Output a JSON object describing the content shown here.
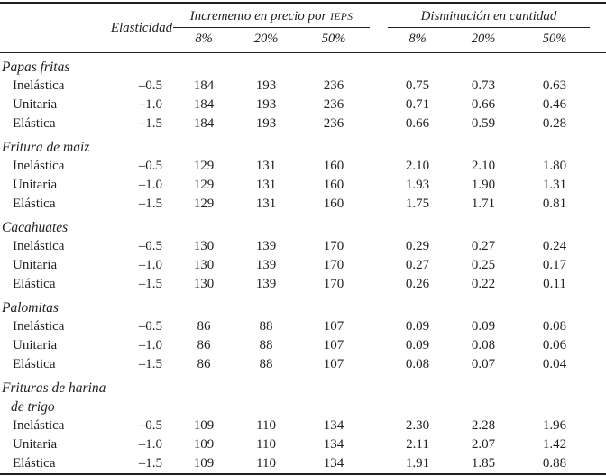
{
  "page": {
    "background": "#ffffff",
    "text_color": "#1f1f1f"
  },
  "table": {
    "header": {
      "elasticity_label": "Elasticidad",
      "groups": [
        {
          "title": "Incremento en precio por ",
          "title_smallcaps": "IEPS",
          "subcols": [
            "8%",
            "20%",
            "50%"
          ]
        },
        {
          "title": "Disminución en cantidad",
          "title_smallcaps": "",
          "subcols": [
            "8%",
            "20%",
            "50%"
          ]
        }
      ]
    },
    "sections": [
      {
        "name": "Papas fritas",
        "name2": "",
        "rows": [
          {
            "label": "Inelástica",
            "elasticity": "–0.5",
            "values": [
              "184",
              "193",
              "236",
              "0.75",
              "0.73",
              "0.63"
            ]
          },
          {
            "label": "Unitaria",
            "elasticity": "–1.0",
            "values": [
              "184",
              "193",
              "236",
              "0.71",
              "0.66",
              "0.46"
            ]
          },
          {
            "label": "Elástica",
            "elasticity": "–1.5",
            "values": [
              "184",
              "193",
              "236",
              "0.66",
              "0.59",
              "0.28"
            ]
          }
        ]
      },
      {
        "name": "Fritura de maíz",
        "name2": "",
        "rows": [
          {
            "label": "Inelástica",
            "elasticity": "–0.5",
            "values": [
              "129",
              "131",
              "160",
              "2.10",
              "2.10",
              "1.80"
            ]
          },
          {
            "label": "Unitaria",
            "elasticity": "–1.0",
            "values": [
              "129",
              "131",
              "160",
              "1.93",
              "1.90",
              "1.31"
            ]
          },
          {
            "label": "Elástica",
            "elasticity": "–1.5",
            "values": [
              "129",
              "131",
              "160",
              "1.75",
              "1.71",
              "0.81"
            ]
          }
        ]
      },
      {
        "name": "Cacahuates",
        "name2": "",
        "rows": [
          {
            "label": "Inelástica",
            "elasticity": "–0.5",
            "values": [
              "130",
              "139",
              "170",
              "0.29",
              "0.27",
              "0.24"
            ]
          },
          {
            "label": "Unitaria",
            "elasticity": "–1.0",
            "values": [
              "130",
              "139",
              "170",
              "0.27",
              "0.25",
              "0.17"
            ]
          },
          {
            "label": "Elástica",
            "elasticity": "–1.5",
            "values": [
              "130",
              "139",
              "170",
              "0.26",
              "0.22",
              "0.11"
            ]
          }
        ]
      },
      {
        "name": "Palomitas",
        "name2": "",
        "rows": [
          {
            "label": "Inelástica",
            "elasticity": "–0.5",
            "values": [
              "86",
              "88",
              "107",
              "0.09",
              "0.09",
              "0.08"
            ]
          },
          {
            "label": "Unitaria",
            "elasticity": "–1.0",
            "values": [
              "86",
              "88",
              "107",
              "0.09",
              "0.08",
              "0.06"
            ]
          },
          {
            "label": "Elástica",
            "elasticity": "–1.5",
            "values": [
              "86",
              "88",
              "107",
              "0.08",
              "0.07",
              "0.04"
            ]
          }
        ]
      },
      {
        "name": "Frituras de harina",
        "name2": "de trigo",
        "rows": [
          {
            "label": "Inelástica",
            "elasticity": "–0.5",
            "values": [
              "109",
              "110",
              "134",
              "2.30",
              "2.28",
              "1.96"
            ]
          },
          {
            "label": "Unitaria",
            "elasticity": "–1.0",
            "values": [
              "109",
              "110",
              "134",
              "2.11",
              "2.07",
              "1.42"
            ]
          },
          {
            "label": "Elástica",
            "elasticity": "–1.5",
            "values": [
              "109",
              "110",
              "134",
              "1.91",
              "1.85",
              "0.88"
            ]
          }
        ]
      }
    ]
  }
}
